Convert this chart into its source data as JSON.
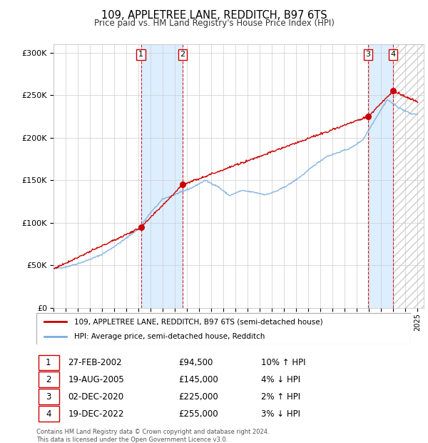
{
  "title1": "109, APPLETREE LANE, REDDITCH, B97 6TS",
  "title2": "Price paid vs. HM Land Registry's House Price Index (HPI)",
  "legend_line1": "109, APPLETREE LANE, REDDITCH, B97 6TS (semi-detached house)",
  "legend_line2": "HPI: Average price, semi-detached house, Redditch",
  "footer": "Contains HM Land Registry data © Crown copyright and database right 2024.\nThis data is licensed under the Open Government Licence v3.0.",
  "sale_year_decimals": [
    2002.208,
    2005.633,
    2020.917,
    2022.967
  ],
  "sale_prices": [
    94500,
    145000,
    225000,
    255000
  ],
  "sale_labels": [
    "1",
    "2",
    "3",
    "4"
  ],
  "table_dates": [
    "27-FEB-2002",
    "19-AUG-2005",
    "02-DEC-2020",
    "19-DEC-2022"
  ],
  "table_prices": [
    "£94,500",
    "£145,000",
    "£225,000",
    "£255,000"
  ],
  "table_hpi": [
    "10% ↑ HPI",
    "4% ↓ HPI",
    "2% ↑ HPI",
    "3% ↓ HPI"
  ],
  "ylim": [
    0,
    310000
  ],
  "xlim_start": 1995.0,
  "xlim_end": 2025.5,
  "hpi_color": "#7aade0",
  "price_color": "#cc0000",
  "shading_color": "#ddeeff",
  "hpi_anchors_t": [
    1995.0,
    1996.0,
    1997.0,
    1998.0,
    1999.0,
    2000.0,
    2001.0,
    2002.0,
    2003.0,
    2004.0,
    2005.5,
    2006.5,
    2007.5,
    2008.5,
    2009.5,
    2010.5,
    2011.5,
    2012.5,
    2013.5,
    2014.5,
    2015.5,
    2016.5,
    2017.5,
    2018.5,
    2019.5,
    2020.5,
    2021.5,
    2022.5,
    2023.5,
    2024.5
  ],
  "hpi_anchors_v": [
    46000,
    48000,
    52000,
    57000,
    63000,
    72000,
    82000,
    93000,
    112000,
    128000,
    136000,
    142000,
    150000,
    143000,
    132000,
    138000,
    136000,
    133000,
    138000,
    146000,
    156000,
    168000,
    178000,
    183000,
    188000,
    198000,
    222000,
    245000,
    235000,
    228000
  ],
  "price_anchors_t": [
    1995.0,
    2002.208,
    2005.633,
    2020.917,
    2022.967,
    2025.0
  ],
  "price_anchors_v": [
    46000,
    94500,
    145000,
    225000,
    255000,
    242000
  ]
}
